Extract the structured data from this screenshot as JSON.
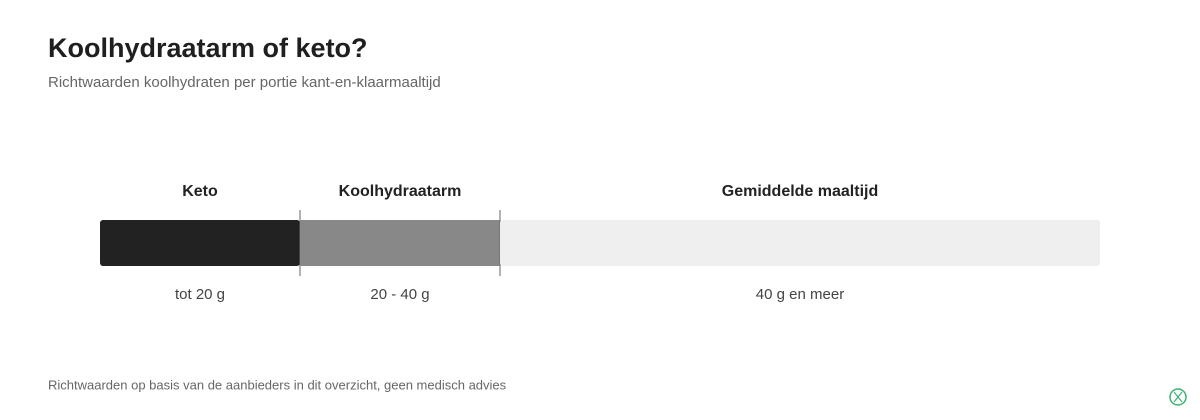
{
  "chart_data": {
    "type": "segments",
    "title": "Koolhydraatarm of keto?",
    "subtitle": "Richtwaarden koolhydraten per portie kant-en-klaarmaaltijd",
    "categories": [
      "Keto",
      "Koolhydraatarm",
      "Gemiddelde maaltijd"
    ],
    "values": [
      20,
      20,
      60
    ],
    "value_labels": [
      "tot 20 g",
      "20 - 40 g",
      "40 g en meer"
    ],
    "colors": [
      "#222222",
      "#888888",
      "#efefef"
    ],
    "xlim": [
      0,
      100
    ],
    "footnote": "Richtwaarden op basis van de aanbieders in dit overzicht, geen medisch advies"
  }
}
